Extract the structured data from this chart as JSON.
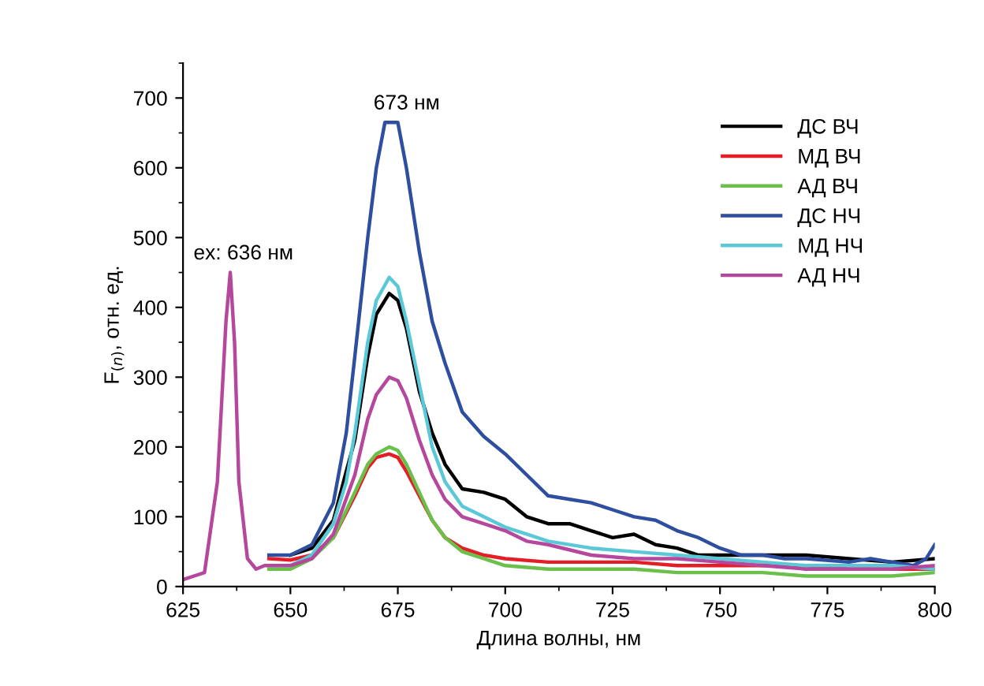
{
  "chart_data": {
    "type": "line",
    "xlabel": "Длина волны, нм",
    "ylabel": "F$_{(n)}$, отн. ед.",
    "xlim": [
      625,
      800
    ],
    "xticks": [
      625,
      650,
      675,
      700,
      725,
      750,
      775,
      800
    ],
    "ylim": [
      0,
      750
    ],
    "yticks": [
      0,
      100,
      200,
      300,
      400,
      500,
      600,
      700
    ],
    "grid": false,
    "legend": "top right",
    "marker": "none",
    "line_style": "solid",
    "annotations": [
      {
        "text": "ex: 636 нм",
        "x": 636,
        "y": 450
      },
      {
        "text": "673 нм",
        "x": 674,
        "y": 665
      }
    ],
    "series": [
      {
        "name": "ДС ВЧ",
        "color": "#000000",
        "x": [
          650,
          655,
          660,
          663,
          665,
          668,
          670,
          673,
          675,
          677,
          680,
          683,
          686,
          690,
          695,
          700,
          705,
          710,
          715,
          720,
          725,
          730,
          735,
          740,
          745,
          750,
          760,
          770,
          780,
          790,
          800
        ],
        "values": [
          45,
          55,
          95,
          165,
          210,
          330,
          390,
          420,
          410,
          370,
          280,
          220,
          175,
          140,
          135,
          125,
          100,
          90,
          90,
          80,
          70,
          75,
          60,
          55,
          45,
          45,
          45,
          45,
          40,
          35,
          40
        ]
      },
      {
        "name": "МД ВЧ",
        "color": "#e41e26",
        "x": [
          645,
          650,
          655,
          660,
          665,
          668,
          670,
          673,
          675,
          677,
          680,
          683,
          686,
          690,
          695,
          700,
          710,
          720,
          730,
          740,
          750,
          760,
          770,
          780,
          790,
          800
        ],
        "values": [
          40,
          38,
          45,
          70,
          130,
          170,
          185,
          190,
          185,
          165,
          130,
          95,
          70,
          55,
          45,
          40,
          35,
          35,
          35,
          30,
          30,
          30,
          30,
          25,
          25,
          25
        ]
      },
      {
        "name": "АД ВЧ",
        "color": "#6bbf4b",
        "x": [
          645,
          650,
          655,
          660,
          665,
          668,
          670,
          673,
          675,
          677,
          680,
          683,
          686,
          690,
          695,
          700,
          710,
          720,
          730,
          740,
          750,
          760,
          770,
          780,
          790,
          800
        ],
        "values": [
          25,
          25,
          40,
          70,
          135,
          175,
          190,
          200,
          195,
          175,
          135,
          95,
          70,
          50,
          40,
          30,
          25,
          25,
          25,
          20,
          20,
          20,
          15,
          15,
          15,
          20
        ]
      },
      {
        "name": "ДС НЧ",
        "color": "#2e4ea0",
        "x": [
          645,
          650,
          655,
          660,
          663,
          665,
          668,
          670,
          672,
          675,
          677,
          680,
          683,
          686,
          690,
          695,
          700,
          705,
          710,
          715,
          720,
          725,
          730,
          735,
          740,
          745,
          750,
          755,
          760,
          765,
          770,
          780,
          785,
          790,
          795,
          798,
          800
        ],
        "values": [
          45,
          45,
          60,
          120,
          220,
          330,
          500,
          600,
          665,
          665,
          600,
          480,
          380,
          320,
          250,
          215,
          190,
          160,
          130,
          125,
          120,
          110,
          100,
          95,
          80,
          70,
          55,
          45,
          45,
          40,
          40,
          35,
          40,
          35,
          30,
          40,
          60
        ]
      },
      {
        "name": "МД НЧ",
        "color": "#5bc8d8",
        "x": [
          645,
          650,
          655,
          660,
          663,
          665,
          668,
          670,
          673,
          675,
          677,
          680,
          683,
          686,
          690,
          695,
          700,
          705,
          710,
          720,
          730,
          740,
          750,
          760,
          770,
          780,
          790,
          800
        ],
        "values": [
          30,
          30,
          45,
          90,
          150,
          220,
          350,
          410,
          443,
          430,
          380,
          290,
          200,
          150,
          115,
          100,
          85,
          75,
          65,
          55,
          50,
          45,
          40,
          35,
          30,
          30,
          30,
          25
        ]
      },
      {
        "name": "АД НЧ",
        "color": "#b5489c",
        "x": [
          625,
          630,
          633,
          635,
          636,
          637,
          638,
          640,
          642,
          644,
          645,
          650,
          655,
          660,
          665,
          668,
          670,
          673,
          675,
          677,
          680,
          683,
          686,
          690,
          695,
          700,
          705,
          710,
          720,
          730,
          740,
          750,
          760,
          770,
          780,
          790,
          800
        ],
        "values": [
          10,
          20,
          150,
          380,
          450,
          350,
          150,
          40,
          25,
          30,
          30,
          30,
          40,
          75,
          160,
          240,
          275,
          300,
          295,
          270,
          210,
          160,
          125,
          100,
          90,
          80,
          65,
          60,
          45,
          40,
          40,
          35,
          30,
          25,
          25,
          25,
          30
        ]
      }
    ]
  }
}
